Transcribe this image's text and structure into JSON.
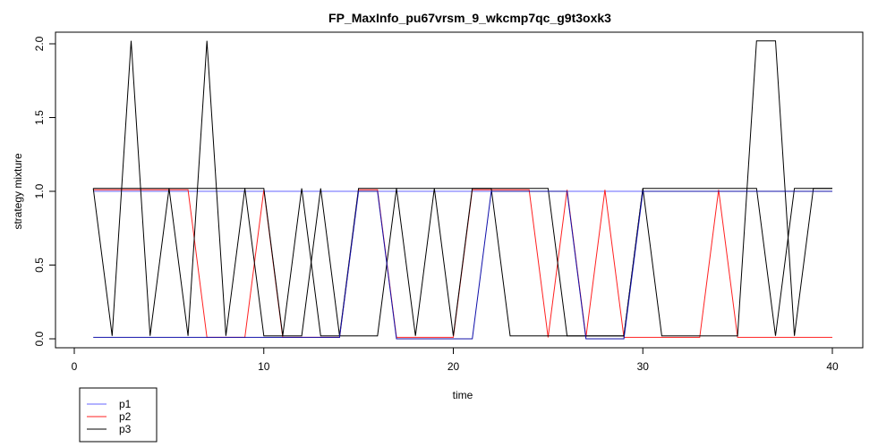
{
  "chart_data": {
    "type": "line",
    "title": "FP_MaxInfo_pu67vrsm_9_wkcmp7qc_g9t3oxk3",
    "xlabel": "time",
    "ylabel": "strategy mixture",
    "xlim": [
      0,
      40
    ],
    "ylim": [
      0,
      2.0
    ],
    "x_ticks": [
      "0",
      "10",
      "20",
      "30",
      "40"
    ],
    "y_ticks": [
      "0.0",
      "0.5",
      "1.0",
      "1.5",
      "2.0"
    ],
    "grid": false,
    "legend_position": "bottom-left outside",
    "x": [
      1,
      2,
      3,
      4,
      5,
      6,
      7,
      8,
      9,
      10,
      11,
      12,
      13,
      14,
      15,
      16,
      17,
      18,
      19,
      20,
      21,
      22,
      23,
      24,
      25,
      26,
      27,
      28,
      29,
      30,
      31,
      32,
      33,
      34,
      35,
      36,
      37,
      38,
      39,
      40
    ],
    "series": [
      {
        "name": "p1",
        "color": "#6464ff",
        "values": [
          1,
          1,
          1,
          1,
          1,
          1,
          1,
          1,
          1,
          1,
          1,
          1,
          1,
          1,
          1,
          1,
          1,
          1,
          1,
          1,
          1,
          1,
          1,
          1,
          1,
          1,
          1,
          1,
          1,
          1,
          1,
          1,
          1,
          1,
          1,
          1,
          1,
          1,
          1,
          1
        ]
      },
      {
        "name": "p2",
        "color": "#ff2020",
        "values": [
          1.01,
          1.01,
          1.01,
          1.01,
          1.01,
          1.01,
          0.01,
          0.01,
          0.01,
          1.01,
          0.01,
          0.01,
          0.01,
          0.01,
          1.01,
          1.01,
          0.01,
          0.01,
          0.01,
          0.01,
          1.01,
          1.01,
          1.01,
          1.01,
          0.01,
          1.01,
          0.01,
          1.01,
          0.01,
          0.01,
          0.01,
          0.01,
          0.01,
          1.01,
          0.01,
          0.01,
          0.01,
          0.01,
          0.01,
          0.01
        ]
      },
      {
        "name": "p3",
        "color": "#000000",
        "values": [
          1.02,
          0.02,
          2.02,
          0.02,
          1.02,
          0.02,
          2.02,
          0.02,
          1.02,
          1.02,
          0.02,
          1.02,
          0.02,
          0.02,
          1.02,
          1.02,
          1.02,
          0.02,
          1.02,
          0.02,
          1.02,
          1.02,
          1.02,
          1.02,
          1.02,
          0.02,
          0.02,
          0.02,
          0.02,
          1.02,
          0.02,
          0.02,
          0.02,
          0.02,
          0.02,
          2.02,
          2.02,
          0.02,
          1.02,
          1.02
        ]
      },
      {
        "name": "",
        "color": "#000000",
        "values": [
          1.02,
          1.02,
          1.02,
          1.02,
          1.02,
          1.02,
          1.02,
          1.02,
          1.02,
          0.02,
          0.02,
          0.02,
          1.02,
          0.02,
          0.02,
          0.02,
          1.02,
          1.02,
          1.02,
          1.02,
          1.02,
          1.02,
          0.02,
          0.02,
          0.02,
          0.02,
          0.02,
          0.02,
          0.02,
          1.02,
          1.02,
          1.02,
          1.02,
          1.02,
          1.02,
          1.02,
          0.02,
          1.02,
          1.02,
          1.02
        ]
      },
      {
        "name": "",
        "color": "#1010aa",
        "values": [
          0.01,
          0.01,
          0.01,
          0.01,
          0.01,
          0.01,
          0.01,
          0.01,
          0.01,
          0.01,
          0.01,
          0.01,
          0.01,
          0.01,
          1.0,
          1.0,
          0.0,
          0.0,
          0.0,
          0.0,
          0.0,
          1.0,
          1.0,
          1.0,
          1.0,
          1.0,
          0.0,
          0.0,
          0.0,
          1.0,
          1.0,
          1.0,
          1.0,
          1.0,
          1.0,
          1.0,
          1.0,
          1.0,
          1.0,
          1.0
        ]
      }
    ]
  }
}
